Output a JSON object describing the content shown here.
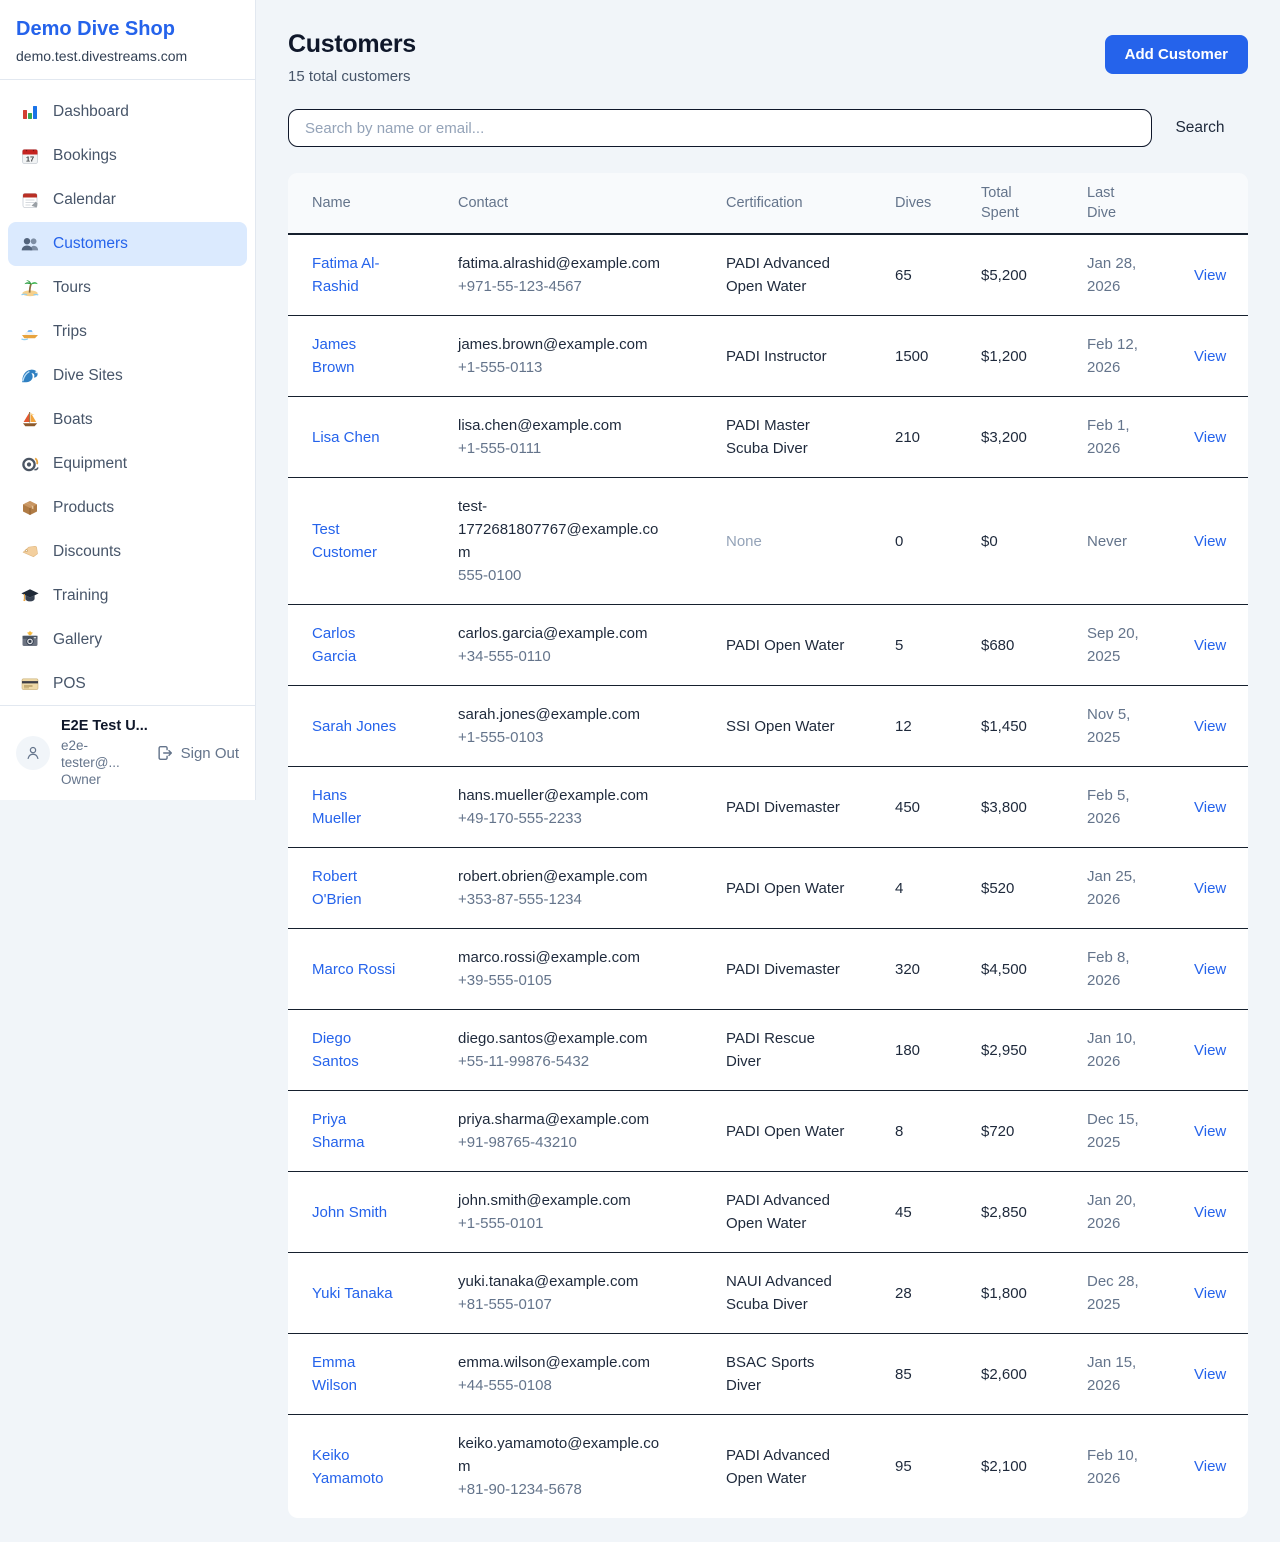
{
  "colors": {
    "accent": "#2563eb",
    "accent_light": "#dbeafe",
    "page_bg": "#f1f5f9",
    "header_bg": "#f8fafc",
    "border_dark": "#16202e"
  },
  "sidebar": {
    "title": "Demo Dive Shop",
    "domain": "demo.test.divestreams.com",
    "items": [
      {
        "label": "Dashboard",
        "icon": "bar-chart",
        "active": false
      },
      {
        "label": "Bookings",
        "icon": "calendar-date",
        "active": false
      },
      {
        "label": "Calendar",
        "icon": "calendar",
        "active": false
      },
      {
        "label": "Customers",
        "icon": "people",
        "active": true
      },
      {
        "label": "Tours",
        "icon": "island",
        "active": false
      },
      {
        "label": "Trips",
        "icon": "speedboat",
        "active": false
      },
      {
        "label": "Dive Sites",
        "icon": "wave",
        "active": false
      },
      {
        "label": "Boats",
        "icon": "sailboat",
        "active": false
      },
      {
        "label": "Equipment",
        "icon": "dive-mask",
        "active": false
      },
      {
        "label": "Products",
        "icon": "package",
        "active": false
      },
      {
        "label": "Discounts",
        "icon": "tag",
        "active": false
      },
      {
        "label": "Training",
        "icon": "graduation-cap",
        "active": false
      },
      {
        "label": "Gallery",
        "icon": "camera",
        "active": false
      },
      {
        "label": "POS",
        "icon": "credit-card",
        "active": false
      }
    ],
    "user": {
      "name": "E2E Test U...",
      "email": "e2e-tester@...",
      "role": "Owner",
      "sign_out_label": "Sign Out"
    }
  },
  "header": {
    "title": "Customers",
    "subtitle": "15 total customers",
    "add_button": "Add Customer"
  },
  "search": {
    "placeholder": "Search by name or email...",
    "button": "Search"
  },
  "table": {
    "columns": [
      "Name",
      "Contact",
      "Certification",
      "Dives",
      "Total Spent",
      "Last Dive"
    ],
    "view_label": "View",
    "rows": [
      {
        "name": "Fatima Al-Rashid",
        "email": "fatima.alrashid@example.com",
        "phone": "+971-55-123-4567",
        "certification": "PADI Advanced Open Water",
        "dives": "65",
        "total_spent": "$5,200",
        "last_dive": "Jan 28, 2026"
      },
      {
        "name": "James Brown",
        "email": "james.brown@example.com",
        "phone": "+1-555-0113",
        "certification": "PADI Instructor",
        "dives": "1500",
        "total_spent": "$1,200",
        "last_dive": "Feb 12, 2026"
      },
      {
        "name": "Lisa Chen",
        "email": "lisa.chen@example.com",
        "phone": "+1-555-0111",
        "certification": "PADI Master Scuba Diver",
        "dives": "210",
        "total_spent": "$3,200",
        "last_dive": "Feb 1, 2026"
      },
      {
        "name": "Test Customer",
        "email": "test-1772681807767@example.com",
        "phone": "555-0100",
        "certification": "None",
        "dives": "0",
        "total_spent": "$0",
        "last_dive": "Never"
      },
      {
        "name": "Carlos Garcia",
        "email": "carlos.garcia@example.com",
        "phone": "+34-555-0110",
        "certification": "PADI Open Water",
        "dives": "5",
        "total_spent": "$680",
        "last_dive": "Sep 20, 2025"
      },
      {
        "name": "Sarah Jones",
        "email": "sarah.jones@example.com",
        "phone": "+1-555-0103",
        "certification": "SSI Open Water",
        "dives": "12",
        "total_spent": "$1,450",
        "last_dive": "Nov 5, 2025"
      },
      {
        "name": "Hans Mueller",
        "email": "hans.mueller@example.com",
        "phone": "+49-170-555-2233",
        "certification": "PADI Divemaster",
        "dives": "450",
        "total_spent": "$3,800",
        "last_dive": "Feb 5, 2026"
      },
      {
        "name": "Robert O'Brien",
        "email": "robert.obrien@example.com",
        "phone": "+353-87-555-1234",
        "certification": "PADI Open Water",
        "dives": "4",
        "total_spent": "$520",
        "last_dive": "Jan 25, 2026"
      },
      {
        "name": "Marco Rossi",
        "email": "marco.rossi@example.com",
        "phone": "+39-555-0105",
        "certification": "PADI Divemaster",
        "dives": "320",
        "total_spent": "$4,500",
        "last_dive": "Feb 8, 2026"
      },
      {
        "name": "Diego Santos",
        "email": "diego.santos@example.com",
        "phone": "+55-11-99876-5432",
        "certification": "PADI Rescue Diver",
        "dives": "180",
        "total_spent": "$2,950",
        "last_dive": "Jan 10, 2026"
      },
      {
        "name": "Priya Sharma",
        "email": "priya.sharma@example.com",
        "phone": "+91-98765-43210",
        "certification": "PADI Open Water",
        "dives": "8",
        "total_spent": "$720",
        "last_dive": "Dec 15, 2025"
      },
      {
        "name": "John Smith",
        "email": "john.smith@example.com",
        "phone": "+1-555-0101",
        "certification": "PADI Advanced Open Water",
        "dives": "45",
        "total_spent": "$2,850",
        "last_dive": "Jan 20, 2026"
      },
      {
        "name": "Yuki Tanaka",
        "email": "yuki.tanaka@example.com",
        "phone": "+81-555-0107",
        "certification": "NAUI Advanced Scuba Diver",
        "dives": "28",
        "total_spent": "$1,800",
        "last_dive": "Dec 28, 2025"
      },
      {
        "name": "Emma Wilson",
        "email": "emma.wilson@example.com",
        "phone": "+44-555-0108",
        "certification": "BSAC Sports Diver",
        "dives": "85",
        "total_spent": "$2,600",
        "last_dive": "Jan 15, 2026"
      },
      {
        "name": "Keiko Yamamoto",
        "email": "keiko.yamamoto@example.com",
        "phone": "+81-90-1234-5678",
        "certification": "PADI Advanced Open Water",
        "dives": "95",
        "total_spent": "$2,100",
        "last_dive": "Feb 10, 2026"
      }
    ]
  }
}
